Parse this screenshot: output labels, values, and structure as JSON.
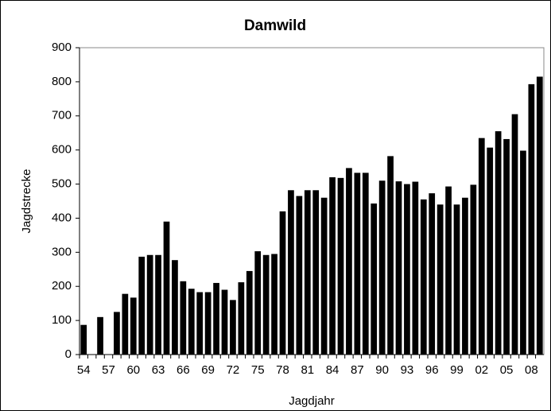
{
  "chart_data": {
    "type": "bar",
    "title": "Damwild",
    "x_label": "Jagdjahr",
    "y_label": "Jagdstrecke",
    "categories": [
      "54",
      null,
      null,
      "57",
      null,
      null,
      "60",
      null,
      null,
      "63",
      null,
      null,
      "66",
      null,
      null,
      "69",
      null,
      null,
      "72",
      null,
      null,
      "75",
      null,
      null,
      "78",
      null,
      null,
      "81",
      null,
      null,
      "84",
      null,
      null,
      "87",
      null,
      null,
      "90",
      null,
      null,
      "93",
      null,
      null,
      "96",
      null,
      null,
      "99",
      null,
      null,
      "02",
      null,
      null,
      "05",
      null,
      null,
      "08",
      null
    ],
    "values": [
      87,
      null,
      110,
      null,
      125,
      178,
      167,
      287,
      292,
      292,
      390,
      277,
      215,
      193,
      183,
      183,
      210,
      190,
      160,
      212,
      245,
      303,
      292,
      295,
      420,
      482,
      465,
      482,
      482,
      460,
      520,
      518,
      547,
      533,
      533,
      443,
      510,
      582,
      508,
      500,
      507,
      455,
      473,
      440,
      493,
      440,
      460,
      498,
      635,
      607,
      655,
      632,
      705,
      598,
      793,
      815
    ],
    "color": "#000000",
    "ylim": [
      0,
      900
    ],
    "yticks": [
      0,
      100,
      200,
      300,
      400,
      500,
      600,
      700,
      800,
      900
    ],
    "grid": false
  }
}
